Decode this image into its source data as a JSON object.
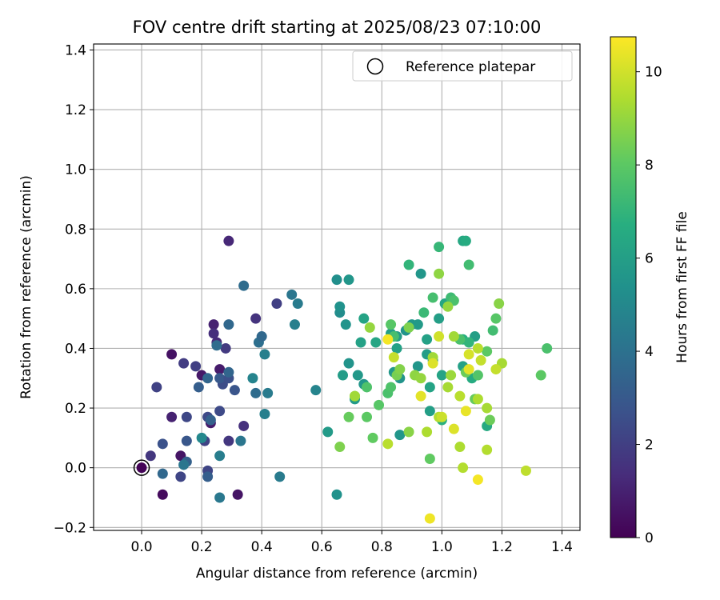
{
  "chart_data": {
    "type": "scatter",
    "title": "FOV centre drift starting at 2025/08/23 07:10:00",
    "xlabel": "Angular distance from reference (arcmin)",
    "ylabel": "Rotation from reference (arcmin)",
    "xlim": [
      -0.16,
      1.46
    ],
    "ylim": [
      -0.21,
      1.42
    ],
    "xticks": [
      "0.0",
      "0.2",
      "0.4",
      "0.6",
      "0.8",
      "1.0",
      "1.2",
      "1.4"
    ],
    "yticks": [
      "−0.2",
      "0.0",
      "0.2",
      "0.4",
      "0.6",
      "0.8",
      "1.0",
      "1.2",
      "1.4"
    ],
    "grid": true,
    "legend": {
      "position": "top-right",
      "entries": [
        "Reference platepar"
      ]
    },
    "reference_point": {
      "x": 0.0,
      "y": 0.0
    },
    "colorbar": {
      "label": "Hours from first FF file",
      "colormap": "viridis",
      "range": [
        0,
        10.75
      ],
      "ticks": [
        "0",
        "2",
        "4",
        "6",
        "8",
        "10"
      ]
    },
    "points": [
      {
        "x": 0.0,
        "y": 0.0,
        "h": 0.1
      },
      {
        "x": 0.07,
        "y": -0.09,
        "h": 0.3
      },
      {
        "x": 0.1,
        "y": 0.38,
        "h": 0.5
      },
      {
        "x": 0.13,
        "y": 0.04,
        "h": 0.6
      },
      {
        "x": 0.1,
        "y": 0.17,
        "h": 1.0
      },
      {
        "x": 0.2,
        "y": 0.31,
        "h": 0.7
      },
      {
        "x": 0.24,
        "y": 0.48,
        "h": 1.0
      },
      {
        "x": 0.26,
        "y": 0.33,
        "h": 0.8
      },
      {
        "x": 0.32,
        "y": -0.09,
        "h": 0.6
      },
      {
        "x": 0.29,
        "y": 0.76,
        "h": 1.2
      },
      {
        "x": 0.23,
        "y": 0.15,
        "h": 0.8
      },
      {
        "x": 0.24,
        "y": 0.45,
        "h": 1.4
      },
      {
        "x": 0.25,
        "y": 0.42,
        "h": 1.3
      },
      {
        "x": 0.34,
        "y": 0.14,
        "h": 1.5
      },
      {
        "x": 0.38,
        "y": 0.5,
        "h": 1.6
      },
      {
        "x": 0.45,
        "y": 0.55,
        "h": 2.0
      },
      {
        "x": 0.28,
        "y": 0.4,
        "h": 1.8
      },
      {
        "x": 0.29,
        "y": 0.09,
        "h": 1.7
      },
      {
        "x": 0.03,
        "y": 0.04,
        "h": 1.7
      },
      {
        "x": 0.05,
        "y": 0.27,
        "h": 2.1
      },
      {
        "x": 0.14,
        "y": 0.35,
        "h": 1.9
      },
      {
        "x": 0.18,
        "y": 0.34,
        "h": 2.0
      },
      {
        "x": 0.15,
        "y": 0.17,
        "h": 2.3
      },
      {
        "x": 0.13,
        "y": -0.03,
        "h": 2.2
      },
      {
        "x": 0.07,
        "y": 0.08,
        "h": 2.7
      },
      {
        "x": 0.15,
        "y": 0.09,
        "h": 2.9
      },
      {
        "x": 0.21,
        "y": 0.09,
        "h": 2.1
      },
      {
        "x": 0.22,
        "y": 0.17,
        "h": 2.4
      },
      {
        "x": 0.22,
        "y": -0.01,
        "h": 2.2
      },
      {
        "x": 0.26,
        "y": 0.19,
        "h": 2.4
      },
      {
        "x": 0.27,
        "y": 0.28,
        "h": 2.5
      },
      {
        "x": 0.26,
        "y": 0.3,
        "h": 3.0
      },
      {
        "x": 0.29,
        "y": 0.3,
        "h": 2.6
      },
      {
        "x": 0.31,
        "y": 0.26,
        "h": 2.8
      },
      {
        "x": 0.19,
        "y": 0.27,
        "h": 3.2
      },
      {
        "x": 0.22,
        "y": 0.3,
        "h": 3.5
      },
      {
        "x": 0.25,
        "y": 0.41,
        "h": 3.8
      },
      {
        "x": 0.29,
        "y": 0.48,
        "h": 3.6
      },
      {
        "x": 0.29,
        "y": 0.32,
        "h": 3.5
      },
      {
        "x": 0.23,
        "y": 0.16,
        "h": 3.3
      },
      {
        "x": 0.15,
        "y": 0.02,
        "h": 3.3
      },
      {
        "x": 0.07,
        "y": -0.02,
        "h": 3.6
      },
      {
        "x": 0.14,
        "y": 0.01,
        "h": 4.2
      },
      {
        "x": 0.22,
        "y": -0.03,
        "h": 3.2
      },
      {
        "x": 0.26,
        "y": -0.1,
        "h": 4.3
      },
      {
        "x": 0.26,
        "y": 0.04,
        "h": 4.5
      },
      {
        "x": 0.33,
        "y": 0.09,
        "h": 4.2
      },
      {
        "x": 0.34,
        "y": 0.61,
        "h": 3.8
      },
      {
        "x": 0.39,
        "y": 0.42,
        "h": 3.9
      },
      {
        "x": 0.4,
        "y": 0.44,
        "h": 3.6
      },
      {
        "x": 0.38,
        "y": 0.25,
        "h": 3.8
      },
      {
        "x": 0.41,
        "y": 0.38,
        "h": 4.6
      },
      {
        "x": 0.42,
        "y": 0.25,
        "h": 4.4
      },
      {
        "x": 0.37,
        "y": 0.3,
        "h": 4.8
      },
      {
        "x": 0.41,
        "y": 0.18,
        "h": 4.6
      },
      {
        "x": 0.46,
        "y": -0.03,
        "h": 4.4
      },
      {
        "x": 0.5,
        "y": 0.58,
        "h": 4.2
      },
      {
        "x": 0.52,
        "y": 0.55,
        "h": 4.4
      },
      {
        "x": 0.51,
        "y": 0.48,
        "h": 4.6
      },
      {
        "x": 0.58,
        "y": 0.26,
        "h": 4.8
      },
      {
        "x": 0.2,
        "y": 0.1,
        "h": 5.0
      },
      {
        "x": 0.62,
        "y": 0.12,
        "h": 5.8
      },
      {
        "x": 0.65,
        "y": -0.09,
        "h": 5.4
      },
      {
        "x": 0.65,
        "y": 0.63,
        "h": 5.3
      },
      {
        "x": 0.69,
        "y": 0.63,
        "h": 5.6
      },
      {
        "x": 0.66,
        "y": 0.52,
        "h": 5.2
      },
      {
        "x": 0.66,
        "y": 0.54,
        "h": 5.4
      },
      {
        "x": 0.68,
        "y": 0.48,
        "h": 5.5
      },
      {
        "x": 0.69,
        "y": 0.35,
        "h": 5.5
      },
      {
        "x": 0.72,
        "y": 0.31,
        "h": 5.7
      },
      {
        "x": 0.67,
        "y": 0.31,
        "h": 5.9
      },
      {
        "x": 0.71,
        "y": 0.23,
        "h": 5.8
      },
      {
        "x": 0.74,
        "y": 0.28,
        "h": 5.6
      },
      {
        "x": 0.73,
        "y": 0.42,
        "h": 6.1
      },
      {
        "x": 0.74,
        "y": 0.5,
        "h": 6.2
      },
      {
        "x": 0.78,
        "y": 0.42,
        "h": 6.3
      },
      {
        "x": 0.83,
        "y": 0.45,
        "h": 6.0
      },
      {
        "x": 0.85,
        "y": 0.44,
        "h": 5.9
      },
      {
        "x": 0.85,
        "y": 0.4,
        "h": 6.1
      },
      {
        "x": 0.84,
        "y": 0.32,
        "h": 5.7
      },
      {
        "x": 0.86,
        "y": 0.3,
        "h": 5.5
      },
      {
        "x": 0.86,
        "y": 0.11,
        "h": 5.6
      },
      {
        "x": 0.88,
        "y": 0.46,
        "h": 5.5
      },
      {
        "x": 0.9,
        "y": 0.48,
        "h": 5.7
      },
      {
        "x": 0.92,
        "y": 0.48,
        "h": 5.8
      },
      {
        "x": 0.93,
        "y": 0.65,
        "h": 5.6
      },
      {
        "x": 0.92,
        "y": 0.34,
        "h": 5.6
      },
      {
        "x": 0.95,
        "y": 0.43,
        "h": 6.1
      },
      {
        "x": 0.95,
        "y": 0.38,
        "h": 5.9
      },
      {
        "x": 0.97,
        "y": 0.36,
        "h": 5.5
      },
      {
        "x": 0.96,
        "y": 0.27,
        "h": 6.2
      },
      {
        "x": 0.96,
        "y": 0.19,
        "h": 6.0
      },
      {
        "x": 0.99,
        "y": 0.5,
        "h": 6.0
      },
      {
        "x": 1.0,
        "y": 0.31,
        "h": 6.2
      },
      {
        "x": 1.01,
        "y": 0.55,
        "h": 6.3
      },
      {
        "x": 1.07,
        "y": 0.76,
        "h": 6.4
      },
      {
        "x": 1.08,
        "y": 0.76,
        "h": 6.6
      },
      {
        "x": 1.11,
        "y": 0.44,
        "h": 6.0
      },
      {
        "x": 1.07,
        "y": 0.34,
        "h": 6.1
      },
      {
        "x": 1.1,
        "y": 0.3,
        "h": 6.6
      },
      {
        "x": 1.15,
        "y": 0.14,
        "h": 6.5
      },
      {
        "x": 1.07,
        "y": 0.43,
        "h": 6.7
      },
      {
        "x": 1.09,
        "y": 0.42,
        "h": 7.0
      },
      {
        "x": 1.0,
        "y": 0.16,
        "h": 6.8
      },
      {
        "x": 0.99,
        "y": 0.74,
        "h": 7.1
      },
      {
        "x": 0.89,
        "y": 0.68,
        "h": 7.0
      },
      {
        "x": 0.94,
        "y": 0.52,
        "h": 7.2
      },
      {
        "x": 0.97,
        "y": 0.57,
        "h": 7.5
      },
      {
        "x": 1.03,
        "y": 0.57,
        "h": 7.3
      },
      {
        "x": 1.04,
        "y": 0.56,
        "h": 7.6
      },
      {
        "x": 1.09,
        "y": 0.68,
        "h": 7.4
      },
      {
        "x": 1.06,
        "y": 0.43,
        "h": 7.6
      },
      {
        "x": 1.12,
        "y": 0.31,
        "h": 7.8
      },
      {
        "x": 1.17,
        "y": 0.46,
        "h": 7.4
      },
      {
        "x": 1.18,
        "y": 0.5,
        "h": 7.9
      },
      {
        "x": 1.15,
        "y": 0.39,
        "h": 8.0
      },
      {
        "x": 1.11,
        "y": 0.23,
        "h": 8.2
      },
      {
        "x": 1.16,
        "y": 0.16,
        "h": 8.3
      },
      {
        "x": 1.08,
        "y": 0.32,
        "h": 8.3
      },
      {
        "x": 0.83,
        "y": 0.48,
        "h": 7.9
      },
      {
        "x": 0.84,
        "y": 0.44,
        "h": 7.5
      },
      {
        "x": 0.82,
        "y": 0.25,
        "h": 7.6
      },
      {
        "x": 0.83,
        "y": 0.27,
        "h": 7.7
      },
      {
        "x": 0.79,
        "y": 0.21,
        "h": 7.9
      },
      {
        "x": 0.75,
        "y": 0.27,
        "h": 7.7
      },
      {
        "x": 0.75,
        "y": 0.17,
        "h": 8.0
      },
      {
        "x": 0.77,
        "y": 0.1,
        "h": 8.1
      },
      {
        "x": 0.69,
        "y": 0.17,
        "h": 8.2
      },
      {
        "x": 0.71,
        "y": 0.24,
        "h": 8.4
      },
      {
        "x": 0.66,
        "y": 0.07,
        "h": 8.6
      },
      {
        "x": 0.96,
        "y": 0.03,
        "h": 8.1
      },
      {
        "x": 0.85,
        "y": 0.31,
        "h": 8.5
      },
      {
        "x": 0.86,
        "y": 0.33,
        "h": 8.7
      },
      {
        "x": 0.89,
        "y": 0.47,
        "h": 8.6
      },
      {
        "x": 0.89,
        "y": 0.12,
        "h": 8.8
      },
      {
        "x": 0.91,
        "y": 0.31,
        "h": 8.9
      },
      {
        "x": 0.93,
        "y": 0.3,
        "h": 9.0
      },
      {
        "x": 0.97,
        "y": 0.37,
        "h": 9.2
      },
      {
        "x": 0.99,
        "y": 0.65,
        "h": 8.9
      },
      {
        "x": 1.02,
        "y": 0.54,
        "h": 9.0
      },
      {
        "x": 1.03,
        "y": 0.31,
        "h": 9.1
      },
      {
        "x": 1.04,
        "y": 0.44,
        "h": 9.2
      },
      {
        "x": 1.02,
        "y": 0.27,
        "h": 9.3
      },
      {
        "x": 0.95,
        "y": 0.12,
        "h": 9.4
      },
      {
        "x": 0.99,
        "y": 0.17,
        "h": 9.5
      },
      {
        "x": 1.06,
        "y": 0.07,
        "h": 9.4
      },
      {
        "x": 1.07,
        "y": 0.0,
        "h": 9.5
      },
      {
        "x": 1.06,
        "y": 0.24,
        "h": 9.6
      },
      {
        "x": 1.12,
        "y": 0.23,
        "h": 9.4
      },
      {
        "x": 1.12,
        "y": 0.4,
        "h": 9.6
      },
      {
        "x": 1.13,
        "y": 0.36,
        "h": 9.8
      },
      {
        "x": 1.15,
        "y": 0.06,
        "h": 9.5
      },
      {
        "x": 1.15,
        "y": 0.2,
        "h": 9.3
      },
      {
        "x": 1.2,
        "y": 0.35,
        "h": 9.3
      },
      {
        "x": 1.18,
        "y": 0.33,
        "h": 9.8
      },
      {
        "x": 1.28,
        "y": -0.01,
        "h": 9.7
      },
      {
        "x": 1.33,
        "y": 0.31,
        "h": 8.0
      },
      {
        "x": 1.35,
        "y": 0.4,
        "h": 7.6
      },
      {
        "x": 1.19,
        "y": 0.55,
        "h": 8.8
      },
      {
        "x": 0.76,
        "y": 0.47,
        "h": 9.0
      },
      {
        "x": 0.71,
        "y": 0.24,
        "h": 9.2
      },
      {
        "x": 0.82,
        "y": 0.08,
        "h": 9.6
      },
      {
        "x": 0.84,
        "y": 0.37,
        "h": 9.8
      },
      {
        "x": 0.99,
        "y": 0.44,
        "h": 10.0
      },
      {
        "x": 1.0,
        "y": 0.17,
        "h": 9.9
      },
      {
        "x": 0.97,
        "y": 0.35,
        "h": 10.2
      },
      {
        "x": 0.93,
        "y": 0.24,
        "h": 10.3
      },
      {
        "x": 1.09,
        "y": 0.38,
        "h": 10.1
      },
      {
        "x": 1.09,
        "y": 0.33,
        "h": 10.3
      },
      {
        "x": 1.08,
        "y": 0.19,
        "h": 10.4
      },
      {
        "x": 1.12,
        "y": -0.04,
        "h": 10.6
      },
      {
        "x": 0.96,
        "y": -0.17,
        "h": 10.5
      },
      {
        "x": 0.82,
        "y": 0.43,
        "h": 10.6
      },
      {
        "x": 1.04,
        "y": 0.13,
        "h": 10.2
      }
    ]
  }
}
